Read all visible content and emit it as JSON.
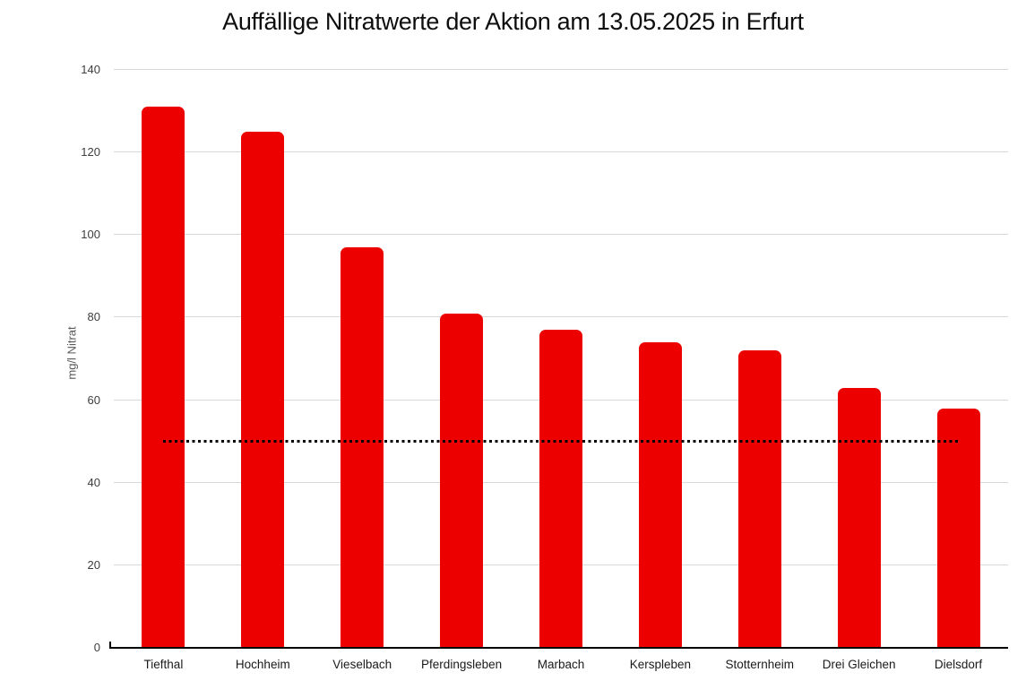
{
  "chart_data": {
    "type": "bar",
    "title": "Auffällige Nitratwerte der Aktion am 13.05.2025 in Erfurt",
    "categories": [
      "Tiefthal",
      "Hochheim",
      "Vieselbach",
      "Pferdingsleben",
      "Marbach",
      "Kerspleben",
      "Stotternheim",
      "Drei Gleichen",
      "Dielsdorf"
    ],
    "values": [
      131,
      125,
      97,
      81,
      77,
      74,
      72,
      63,
      58
    ],
    "xlabel": "",
    "ylabel": "mg/l Nitrat",
    "ylim": [
      0,
      140
    ],
    "yticks": [
      0,
      20,
      40,
      60,
      80,
      100,
      120,
      140
    ],
    "grid": true,
    "legend": "none",
    "reference_line": {
      "value": 50,
      "style": "dotted",
      "color": "#000000",
      "extent": "first-to-last-category-center"
    },
    "colors": {
      "bar": "#ec0000",
      "gridline": "#d9d9d9",
      "axis": "#000000",
      "tick_label": "#3d3d3d",
      "category_label": "#1a1a1a",
      "axis_title": "#595959",
      "title": "#0d0d0d",
      "background": "#ffffff"
    }
  }
}
